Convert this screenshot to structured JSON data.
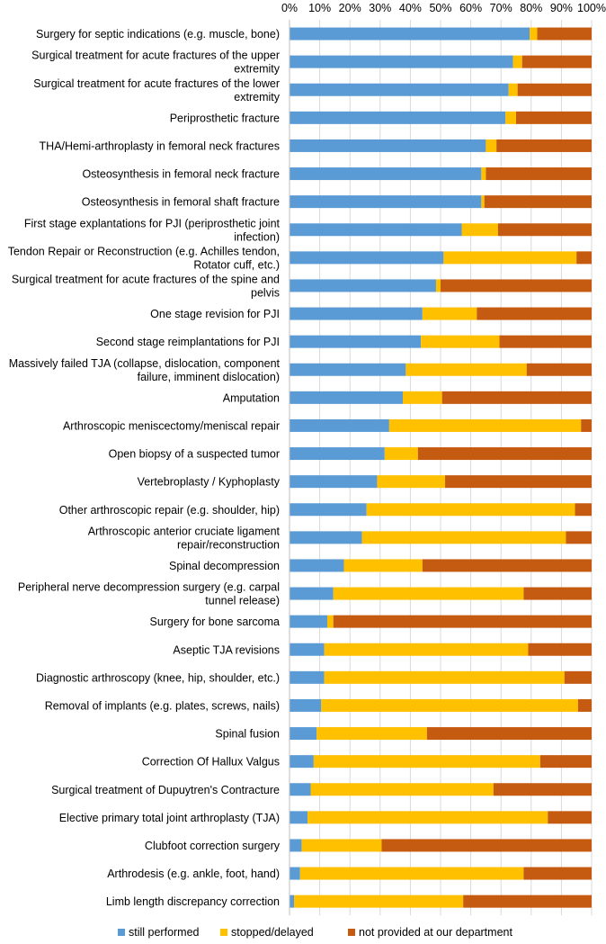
{
  "chart_data": {
    "type": "bar",
    "orientation": "horizontal",
    "stacked": "percent",
    "xlim": [
      0,
      100
    ],
    "xticks": [
      "0%",
      "10%",
      "20%",
      "30%",
      "40%",
      "50%",
      "60%",
      "70%",
      "80%",
      "90%",
      "100%"
    ],
    "xaxis_position": "top",
    "grid": true,
    "legend_position": "bottom",
    "categories": [
      [
        "Surgery for septic indications (e.g. muscle, bone)"
      ],
      [
        "Surgical treatment for acute fractures of the upper",
        "extremity"
      ],
      [
        "Surgical treatment for acute fractures of the lower",
        "extremity"
      ],
      [
        "Periprosthetic fracture"
      ],
      [
        "THA/Hemi-arthroplasty in femoral neck fractures"
      ],
      [
        "Osteosynthesis in femoral neck fracture"
      ],
      [
        "Osteosynthesis in femoral shaft fracture"
      ],
      [
        "First stage explantations for PJI (periprosthetic joint",
        "infection)"
      ],
      [
        "Tendon Repair or Reconstruction (e.g. Achilles tendon,",
        "Rotator cuff, etc.)"
      ],
      [
        "Surgical treatment for acute fractures of the spine and",
        "pelvis"
      ],
      [
        "One stage revision for PJI"
      ],
      [
        "Second stage reimplantations for PJI"
      ],
      [
        "Massively failed TJA (collapse, dislocation, component",
        "failure, imminent dislocation)"
      ],
      [
        "Amputation"
      ],
      [
        "Arthroscopic meniscectomy/meniscal repair"
      ],
      [
        "Open biopsy of a suspected tumor"
      ],
      [
        "Vertebroplasty / Kyphoplasty"
      ],
      [
        "Other arthroscopic repair (e.g. shoulder, hip)"
      ],
      [
        "Arthroscopic anterior cruciate ligament",
        "repair/reconstruction"
      ],
      [
        "Spinal decompression"
      ],
      [
        "Peripheral nerve decompression surgery (e.g. carpal",
        "tunnel release)"
      ],
      [
        "Surgery for bone sarcoma"
      ],
      [
        "Aseptic TJA revisions"
      ],
      [
        "Diagnostic arthroscopy (knee, hip, shoulder, etc.)"
      ],
      [
        "Removal of implants (e.g. plates, screws, nails)"
      ],
      [
        "Spinal fusion"
      ],
      [
        "Correction Of Hallux Valgus"
      ],
      [
        "Surgical treatment of Dupuytren's Contracture"
      ],
      [
        "Elective primary total joint arthroplasty (TJA)"
      ],
      [
        "Clubfoot correction surgery"
      ],
      [
        "Arthrodesis (e.g. ankle, foot, hand)"
      ],
      [
        "Limb length discrepancy correction"
      ]
    ],
    "series": [
      {
        "name": "still performed",
        "color": "#5B9BD5",
        "values": [
          79.5,
          74,
          72.5,
          71.5,
          65,
          63.5,
          63.5,
          57,
          51,
          48.5,
          44,
          43.5,
          38.5,
          37.5,
          33,
          31.5,
          29,
          25.5,
          24,
          18,
          14.5,
          12.5,
          11.5,
          11.5,
          10.5,
          9,
          8,
          7,
          6,
          4,
          3.5,
          1.5
        ]
      },
      {
        "name": "stopped/delayed",
        "color": "#FFC000",
        "values": [
          2.5,
          3,
          3,
          3.5,
          3.5,
          1.5,
          1,
          12,
          44,
          1.5,
          18,
          26,
          40,
          13,
          63.5,
          11,
          22.5,
          69,
          67.5,
          26,
          63,
          2,
          67.5,
          79.5,
          85,
          36.5,
          75,
          60.5,
          79.5,
          26.5,
          74,
          56
        ]
      },
      {
        "name": "not provided at our department",
        "color": "#C55A11",
        "values": [
          18,
          23,
          24.5,
          25,
          31.5,
          35,
          35.5,
          31,
          5,
          50,
          38,
          30.5,
          21.5,
          49.5,
          3.5,
          57.5,
          48.5,
          5.5,
          8.5,
          56,
          22.5,
          85.5,
          21,
          9,
          4.5,
          54.5,
          17,
          32.5,
          14.5,
          69.5,
          22.5,
          42.5
        ]
      }
    ]
  }
}
